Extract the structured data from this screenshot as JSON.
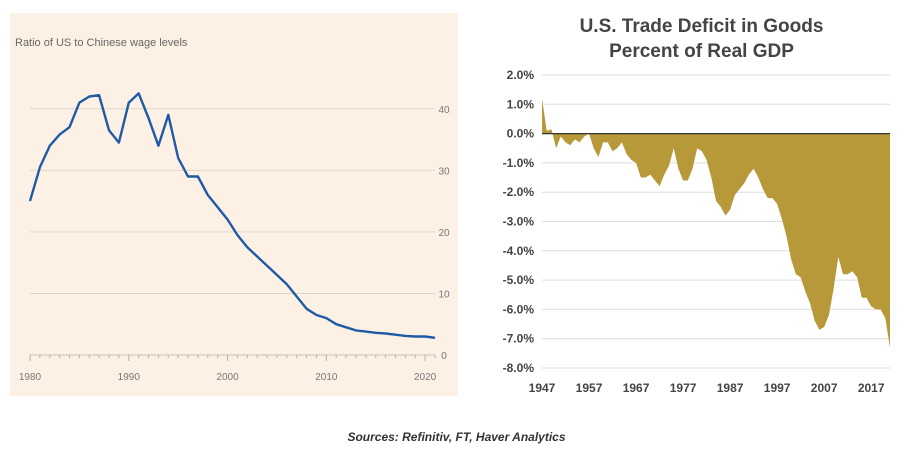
{
  "colors": {
    "left_bg": "#fdf1e6",
    "left_line": "#1f5aa6",
    "area_fill": "#b8993a",
    "grid": "#dedede",
    "text": "#444444"
  },
  "source_note": "Sources: Refinitiv, FT, Haver Analytics",
  "chart_data": [
    {
      "type": "line",
      "title": "Ratio of US to Chinese wage levels",
      "xlim": [
        1980,
        2021
      ],
      "ylim": [
        0,
        45
      ],
      "x_ticks": [
        1980,
        1990,
        2000,
        2010,
        2020
      ],
      "y_ticks": [
        0,
        10,
        20,
        30,
        40
      ],
      "y_axis_side": "right",
      "grid": true,
      "series": [
        {
          "x": [
            1980,
            1981,
            1982,
            1983,
            1984,
            1985,
            1986,
            1987,
            1988,
            1989,
            1990,
            1991,
            1992,
            1993,
            1994,
            1995,
            1996,
            1997,
            1998,
            1999,
            2000,
            2001,
            2002,
            2003,
            2004,
            2005,
            2006,
            2007,
            2008,
            2009,
            2010,
            2011,
            2012,
            2013,
            2014,
            2015,
            2016,
            2017,
            2018,
            2019,
            2020,
            2021
          ],
          "y": [
            25,
            30.5,
            34,
            35.8,
            37,
            41,
            42,
            42.2,
            36.5,
            34.5,
            41,
            42.5,
            38.5,
            34,
            39,
            32,
            29,
            29,
            26,
            24,
            22,
            19.5,
            17.5,
            16,
            14.5,
            13,
            11.5,
            9.5,
            7.5,
            6.5,
            6,
            5,
            4.5,
            4,
            3.8,
            3.6,
            3.5,
            3.3,
            3.1,
            3,
            3,
            2.8
          ]
        }
      ]
    },
    {
      "type": "area",
      "title": "U.S. Trade Deficit in Goods",
      "subtitle": "Percent of Real GDP",
      "xlim": [
        1947,
        2021
      ],
      "ylim": [
        -8,
        2
      ],
      "x_ticks": [
        "1947",
        "1957",
        "1967",
        "1977",
        "1987",
        "1997",
        "2007",
        "2017"
      ],
      "y_ticks": [
        "2.0%",
        "1.0%",
        "0.0%",
        "-1.0%",
        "-2.0%",
        "-3.0%",
        "-4.0%",
        "-5.0%",
        "-6.0%",
        "-7.0%",
        "-8.0%"
      ],
      "grid": true,
      "series": [
        {
          "x": [
            1947,
            1948,
            1949,
            1950,
            1951,
            1952,
            1953,
            1954,
            1955,
            1956,
            1957,
            1958,
            1959,
            1960,
            1961,
            1962,
            1963,
            1964,
            1965,
            1966,
            1967,
            1968,
            1969,
            1970,
            1971,
            1972,
            1973,
            1974,
            1975,
            1976,
            1977,
            1978,
            1979,
            1980,
            1981,
            1982,
            1983,
            1984,
            1985,
            1986,
            1987,
            1988,
            1989,
            1990,
            1991,
            1992,
            1993,
            1994,
            1995,
            1996,
            1997,
            1998,
            1999,
            2000,
            2001,
            2002,
            2003,
            2004,
            2005,
            2006,
            2007,
            2008,
            2009,
            2010,
            2011,
            2012,
            2013,
            2014,
            2015,
            2016,
            2017,
            2018,
            2019,
            2020,
            2021
          ],
          "y": [
            1.2,
            0.1,
            0.15,
            -0.5,
            -0.1,
            -0.3,
            -0.4,
            -0.2,
            -0.3,
            -0.1,
            0,
            -0.5,
            -0.8,
            -0.3,
            -0.3,
            -0.6,
            -0.5,
            -0.3,
            -0.7,
            -0.9,
            -1,
            -1.5,
            -1.5,
            -1.4,
            -1.6,
            -1.8,
            -1.4,
            -1.1,
            -0.5,
            -1.2,
            -1.6,
            -1.6,
            -1.2,
            -0.5,
            -0.6,
            -0.9,
            -1.5,
            -2.3,
            -2.5,
            -2.8,
            -2.6,
            -2.1,
            -1.9,
            -1.7,
            -1.4,
            -1.2,
            -1.5,
            -1.9,
            -2.2,
            -2.2,
            -2.4,
            -2.9,
            -3.5,
            -4.3,
            -4.8,
            -4.9,
            -5.4,
            -5.8,
            -6.4,
            -6.7,
            -6.6,
            -6.2,
            -5.3,
            -4.2,
            -4.8,
            -4.8,
            -4.7,
            -4.9,
            -5.6,
            -5.6,
            -5.9,
            -6,
            -6,
            -6.3,
            -7.3
          ]
        }
      ]
    }
  ]
}
